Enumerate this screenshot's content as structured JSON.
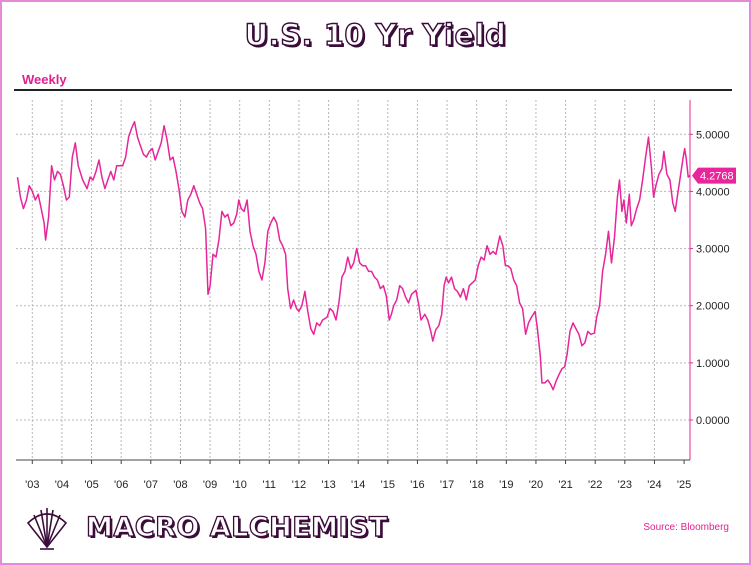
{
  "title": "U.S. 10 Yr Yield",
  "frequency": "Weekly",
  "brand": {
    "name": "MACRO ALCHEMIST",
    "logo_icon": "shell-fan-icon"
  },
  "source": "Source: Bloomberg",
  "colors": {
    "series": "#e8259a",
    "frame": "#e58ad9",
    "title_outline": "#3b0c3a",
    "accent": "#e0208f"
  },
  "chart_data": {
    "type": "line",
    "x_tick_labels": [
      "'03",
      "'04",
      "'05",
      "'06",
      "'07",
      "'08",
      "'09",
      "'10",
      "'11",
      "'12",
      "'13",
      "'14",
      "'15",
      "'16",
      "'17",
      "'18",
      "'19",
      "'20",
      "'21",
      "'22",
      "'23",
      "'24",
      "'25"
    ],
    "y_tick_labels": [
      "0.0000",
      "1.0000",
      "2.0000",
      "3.0000",
      "4.0000",
      "5.0000"
    ],
    "ylim": [
      -0.7,
      5.6
    ],
    "xlim": [
      2002.45,
      2025.2
    ],
    "grid": true,
    "last_value_label": "4.2768",
    "series": [
      {
        "values": [
          [
            2002.5,
            4.25
          ],
          [
            2002.6,
            3.9
          ],
          [
            2002.7,
            3.7
          ],
          [
            2002.8,
            3.85
          ],
          [
            2002.9,
            4.1
          ],
          [
            2003.0,
            4.0
          ],
          [
            2003.1,
            3.85
          ],
          [
            2003.2,
            3.95
          ],
          [
            2003.3,
            3.7
          ],
          [
            2003.4,
            3.45
          ],
          [
            2003.45,
            3.15
          ],
          [
            2003.55,
            3.55
          ],
          [
            2003.65,
            4.45
          ],
          [
            2003.75,
            4.2
          ],
          [
            2003.85,
            4.35
          ],
          [
            2003.95,
            4.3
          ],
          [
            2004.05,
            4.1
          ],
          [
            2004.15,
            3.85
          ],
          [
            2004.25,
            3.9
          ],
          [
            2004.35,
            4.6
          ],
          [
            2004.45,
            4.85
          ],
          [
            2004.55,
            4.45
          ],
          [
            2004.7,
            4.2
          ],
          [
            2004.85,
            4.05
          ],
          [
            2004.95,
            4.25
          ],
          [
            2005.05,
            4.2
          ],
          [
            2005.15,
            4.35
          ],
          [
            2005.25,
            4.55
          ],
          [
            2005.35,
            4.25
          ],
          [
            2005.45,
            4.05
          ],
          [
            2005.55,
            4.2
          ],
          [
            2005.65,
            4.35
          ],
          [
            2005.75,
            4.2
          ],
          [
            2005.85,
            4.45
          ],
          [
            2005.95,
            4.45
          ],
          [
            2006.05,
            4.45
          ],
          [
            2006.15,
            4.6
          ],
          [
            2006.25,
            4.95
          ],
          [
            2006.35,
            5.1
          ],
          [
            2006.45,
            5.22
          ],
          [
            2006.55,
            4.95
          ],
          [
            2006.65,
            4.8
          ],
          [
            2006.75,
            4.65
          ],
          [
            2006.85,
            4.6
          ],
          [
            2006.95,
            4.7
          ],
          [
            2007.05,
            4.75
          ],
          [
            2007.15,
            4.55
          ],
          [
            2007.25,
            4.7
          ],
          [
            2007.35,
            4.85
          ],
          [
            2007.45,
            5.15
          ],
          [
            2007.55,
            4.9
          ],
          [
            2007.65,
            4.55
          ],
          [
            2007.75,
            4.6
          ],
          [
            2007.85,
            4.35
          ],
          [
            2007.95,
            4.05
          ],
          [
            2008.05,
            3.65
          ],
          [
            2008.15,
            3.55
          ],
          [
            2008.25,
            3.85
          ],
          [
            2008.35,
            3.95
          ],
          [
            2008.45,
            4.1
          ],
          [
            2008.55,
            3.95
          ],
          [
            2008.65,
            3.8
          ],
          [
            2008.75,
            3.7
          ],
          [
            2008.85,
            3.35
          ],
          [
            2008.93,
            2.2
          ],
          [
            2009.0,
            2.35
          ],
          [
            2009.1,
            2.9
          ],
          [
            2009.2,
            2.85
          ],
          [
            2009.3,
            3.15
          ],
          [
            2009.4,
            3.65
          ],
          [
            2009.5,
            3.55
          ],
          [
            2009.6,
            3.6
          ],
          [
            2009.7,
            3.4
          ],
          [
            2009.8,
            3.45
          ],
          [
            2009.9,
            3.6
          ],
          [
            2009.97,
            3.85
          ],
          [
            2010.05,
            3.7
          ],
          [
            2010.15,
            3.65
          ],
          [
            2010.25,
            3.85
          ],
          [
            2010.35,
            3.3
          ],
          [
            2010.45,
            3.05
          ],
          [
            2010.55,
            2.9
          ],
          [
            2010.65,
            2.6
          ],
          [
            2010.75,
            2.45
          ],
          [
            2010.85,
            2.75
          ],
          [
            2010.95,
            3.3
          ],
          [
            2011.05,
            3.45
          ],
          [
            2011.15,
            3.55
          ],
          [
            2011.25,
            3.45
          ],
          [
            2011.35,
            3.15
          ],
          [
            2011.45,
            3.05
          ],
          [
            2011.55,
            2.9
          ],
          [
            2011.62,
            2.3
          ],
          [
            2011.72,
            1.95
          ],
          [
            2011.82,
            2.1
          ],
          [
            2011.92,
            1.95
          ],
          [
            2012.0,
            1.9
          ],
          [
            2012.1,
            2.0
          ],
          [
            2012.2,
            2.25
          ],
          [
            2012.3,
            1.9
          ],
          [
            2012.4,
            1.6
          ],
          [
            2012.5,
            1.5
          ],
          [
            2012.6,
            1.7
          ],
          [
            2012.7,
            1.65
          ],
          [
            2012.8,
            1.75
          ],
          [
            2012.95,
            1.8
          ],
          [
            2013.05,
            1.95
          ],
          [
            2013.15,
            1.9
          ],
          [
            2013.25,
            1.75
          ],
          [
            2013.35,
            2.05
          ],
          [
            2013.45,
            2.5
          ],
          [
            2013.55,
            2.6
          ],
          [
            2013.65,
            2.85
          ],
          [
            2013.75,
            2.65
          ],
          [
            2013.85,
            2.75
          ],
          [
            2013.95,
            3.0
          ],
          [
            2014.05,
            2.75
          ],
          [
            2014.15,
            2.7
          ],
          [
            2014.25,
            2.7
          ],
          [
            2014.35,
            2.6
          ],
          [
            2014.45,
            2.6
          ],
          [
            2014.55,
            2.5
          ],
          [
            2014.65,
            2.45
          ],
          [
            2014.75,
            2.3
          ],
          [
            2014.85,
            2.35
          ],
          [
            2014.95,
            2.17
          ],
          [
            2015.05,
            1.75
          ],
          [
            2015.12,
            1.85
          ],
          [
            2015.2,
            2.0
          ],
          [
            2015.3,
            2.1
          ],
          [
            2015.4,
            2.35
          ],
          [
            2015.5,
            2.3
          ],
          [
            2015.6,
            2.15
          ],
          [
            2015.7,
            2.05
          ],
          [
            2015.8,
            2.2
          ],
          [
            2015.95,
            2.27
          ],
          [
            2016.05,
            2.0
          ],
          [
            2016.12,
            1.75
          ],
          [
            2016.25,
            1.85
          ],
          [
            2016.35,
            1.75
          ],
          [
            2016.45,
            1.55
          ],
          [
            2016.52,
            1.38
          ],
          [
            2016.62,
            1.58
          ],
          [
            2016.72,
            1.65
          ],
          [
            2016.82,
            1.85
          ],
          [
            2016.9,
            2.35
          ],
          [
            2016.97,
            2.5
          ],
          [
            2017.05,
            2.4
          ],
          [
            2017.15,
            2.5
          ],
          [
            2017.25,
            2.3
          ],
          [
            2017.35,
            2.25
          ],
          [
            2017.45,
            2.15
          ],
          [
            2017.55,
            2.3
          ],
          [
            2017.65,
            2.1
          ],
          [
            2017.75,
            2.35
          ],
          [
            2017.85,
            2.4
          ],
          [
            2017.95,
            2.45
          ],
          [
            2018.05,
            2.7
          ],
          [
            2018.15,
            2.85
          ],
          [
            2018.25,
            2.8
          ],
          [
            2018.35,
            3.05
          ],
          [
            2018.45,
            2.9
          ],
          [
            2018.55,
            2.95
          ],
          [
            2018.65,
            2.9
          ],
          [
            2018.78,
            3.22
          ],
          [
            2018.88,
            3.05
          ],
          [
            2018.97,
            2.7
          ],
          [
            2019.05,
            2.7
          ],
          [
            2019.15,
            2.65
          ],
          [
            2019.25,
            2.45
          ],
          [
            2019.35,
            2.35
          ],
          [
            2019.45,
            2.05
          ],
          [
            2019.55,
            1.95
          ],
          [
            2019.65,
            1.5
          ],
          [
            2019.75,
            1.7
          ],
          [
            2019.85,
            1.8
          ],
          [
            2019.97,
            1.9
          ],
          [
            2020.05,
            1.6
          ],
          [
            2020.15,
            1.1
          ],
          [
            2020.2,
            0.65
          ],
          [
            2020.3,
            0.65
          ],
          [
            2020.4,
            0.7
          ],
          [
            2020.5,
            0.62
          ],
          [
            2020.58,
            0.53
          ],
          [
            2020.68,
            0.68
          ],
          [
            2020.78,
            0.8
          ],
          [
            2020.88,
            0.9
          ],
          [
            2020.97,
            0.93
          ],
          [
            2021.05,
            1.15
          ],
          [
            2021.15,
            1.55
          ],
          [
            2021.25,
            1.7
          ],
          [
            2021.35,
            1.6
          ],
          [
            2021.45,
            1.5
          ],
          [
            2021.55,
            1.3
          ],
          [
            2021.65,
            1.35
          ],
          [
            2021.75,
            1.55
          ],
          [
            2021.85,
            1.5
          ],
          [
            2021.97,
            1.52
          ],
          [
            2022.05,
            1.8
          ],
          [
            2022.15,
            2.0
          ],
          [
            2022.25,
            2.6
          ],
          [
            2022.35,
            2.9
          ],
          [
            2022.45,
            3.3
          ],
          [
            2022.55,
            2.75
          ],
          [
            2022.65,
            3.2
          ],
          [
            2022.75,
            3.9
          ],
          [
            2022.82,
            4.2
          ],
          [
            2022.9,
            3.65
          ],
          [
            2022.97,
            3.85
          ],
          [
            2023.05,
            3.45
          ],
          [
            2023.15,
            3.95
          ],
          [
            2023.22,
            3.4
          ],
          [
            2023.3,
            3.5
          ],
          [
            2023.4,
            3.7
          ],
          [
            2023.5,
            3.85
          ],
          [
            2023.6,
            4.2
          ],
          [
            2023.7,
            4.6
          ],
          [
            2023.8,
            4.95
          ],
          [
            2023.9,
            4.4
          ],
          [
            2023.97,
            3.9
          ],
          [
            2024.05,
            4.1
          ],
          [
            2024.15,
            4.3
          ],
          [
            2024.25,
            4.4
          ],
          [
            2024.32,
            4.7
          ],
          [
            2024.42,
            4.3
          ],
          [
            2024.52,
            4.2
          ],
          [
            2024.62,
            3.8
          ],
          [
            2024.7,
            3.65
          ],
          [
            2024.8,
            4.0
          ],
          [
            2024.9,
            4.35
          ],
          [
            2024.97,
            4.6
          ],
          [
            2025.02,
            4.75
          ],
          [
            2025.08,
            4.55
          ],
          [
            2025.14,
            4.25
          ],
          [
            2025.2,
            4.28
          ]
        ]
      }
    ]
  }
}
